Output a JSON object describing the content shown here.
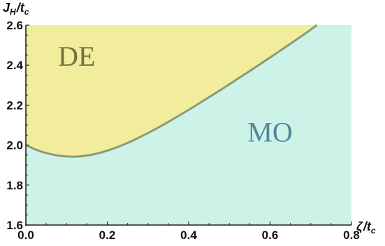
{
  "chart_data": {
    "type": "area",
    "x": [
      0.0,
      0.02,
      0.04,
      0.06,
      0.08,
      0.1,
      0.12,
      0.14,
      0.16,
      0.18,
      0.2,
      0.22,
      0.24,
      0.26,
      0.28,
      0.3,
      0.32,
      0.34,
      0.36,
      0.38,
      0.4,
      0.42,
      0.44,
      0.46,
      0.48,
      0.5,
      0.52,
      0.54,
      0.56,
      0.58,
      0.6,
      0.62,
      0.64,
      0.66,
      0.68,
      0.7,
      0.715
    ],
    "boundary": [
      2.0,
      1.981,
      1.966,
      1.955,
      1.947,
      1.943,
      1.942,
      1.945,
      1.951,
      1.96,
      1.972,
      1.986,
      2.002,
      2.02,
      2.04,
      2.06,
      2.082,
      2.104,
      2.128,
      2.152,
      2.176,
      2.201,
      2.227,
      2.252,
      2.278,
      2.304,
      2.331,
      2.357,
      2.384,
      2.411,
      2.438,
      2.466,
      2.493,
      2.521,
      2.549,
      2.578,
      2.6
    ],
    "regions": [
      {
        "name": "DE",
        "side": "above",
        "color": "#f2ed9c",
        "label_color": "#707042",
        "label_x": 0.125,
        "label_y": 2.43
      },
      {
        "name": "MO",
        "side": "below",
        "color": "#cdf3e9",
        "label_color": "#52879a",
        "label_x": 0.6,
        "label_y": 2.05
      }
    ],
    "boundary_color": "#8a9a7a",
    "xlim": [
      0.0,
      0.8
    ],
    "ylim": [
      1.6,
      2.6
    ],
    "xticks": [
      "0.0",
      "0.2",
      "0.4",
      "0.6",
      "0.8"
    ],
    "yticks": [
      "1.6",
      "1.8",
      "2.0",
      "2.2",
      "2.4",
      "2.6"
    ],
    "xlabel": {
      "main": "ζ",
      "sep": "/",
      "var": "t",
      "sub": "c"
    },
    "ylabel": {
      "main": "J",
      "main_sub": "H",
      "sep": "/",
      "var": "t",
      "sub": "c"
    },
    "grid": false
  }
}
